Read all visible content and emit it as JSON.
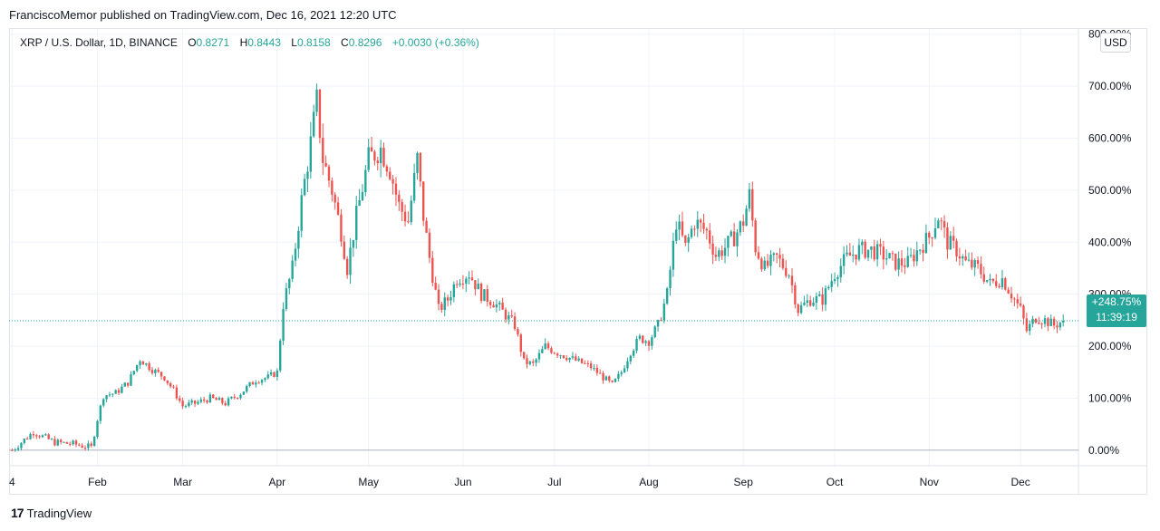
{
  "header": {
    "published": "FranciscoMemor published on TradingView.com, Dec 16, 2021 12:20 UTC"
  },
  "legend": {
    "symbol": "XRP / U.S. Dollar, 1D, BINANCE",
    "o_label": "O",
    "o_value": "0.8271",
    "h_label": "H",
    "h_value": "0.8443",
    "l_label": "L",
    "l_value": "0.8158",
    "c_label": "C",
    "c_value": "0.8296",
    "change": "+0.0030 (+0.36%)"
  },
  "currency_button": "USD",
  "price_tag": {
    "value": "+248.75%",
    "countdown": "11:39:19"
  },
  "logo": {
    "mark": "17",
    "text": "TradingView"
  },
  "colors": {
    "up": "#26a69a",
    "down": "#ef5350",
    "grid": "#f0f3fa",
    "axis_text": "#131722"
  },
  "chart_data": {
    "type": "candlestick",
    "y_unit": "percent change",
    "ylim": [
      -30,
      810
    ],
    "y_ticks": [
      0,
      100,
      200,
      300,
      400,
      500,
      600,
      700,
      800
    ],
    "y_tick_labels": [
      "0.00%",
      "100.00%",
      "200.00%",
      "300.00%",
      "400.00%",
      "500.00%",
      "600.00%",
      "700.00%",
      "800.00%"
    ],
    "x_range_days": [
      -1,
      350
    ],
    "x_ticks": [
      {
        "label": "4",
        "day": 0
      },
      {
        "label": "Feb",
        "day": 28
      },
      {
        "label": "Mar",
        "day": 56
      },
      {
        "label": "Apr",
        "day": 87
      },
      {
        "label": "May",
        "day": 117
      },
      {
        "label": "Jun",
        "day": 148
      },
      {
        "label": "Jul",
        "day": 178
      },
      {
        "label": "Aug",
        "day": 209
      },
      {
        "label": "Sep",
        "day": 240
      },
      {
        "label": "Oct",
        "day": 270
      },
      {
        "label": "Nov",
        "day": 301
      },
      {
        "label": "Dec",
        "day": 331
      }
    ],
    "last_value": 248.75,
    "grid": true,
    "series": [
      {
        "day": 0,
        "close": 0
      },
      {
        "day": 7,
        "close": 35
      },
      {
        "day": 14,
        "close": 15
      },
      {
        "day": 20,
        "close": 12
      },
      {
        "day": 26,
        "close": 5
      },
      {
        "day": 28,
        "close": 60
      },
      {
        "day": 30,
        "close": 105
      },
      {
        "day": 34,
        "close": 110
      },
      {
        "day": 38,
        "close": 130
      },
      {
        "day": 42,
        "close": 175
      },
      {
        "day": 46,
        "close": 155
      },
      {
        "day": 50,
        "close": 140
      },
      {
        "day": 53,
        "close": 115
      },
      {
        "day": 56,
        "close": 85
      },
      {
        "day": 60,
        "close": 90
      },
      {
        "day": 65,
        "close": 100
      },
      {
        "day": 70,
        "close": 90
      },
      {
        "day": 75,
        "close": 110
      },
      {
        "day": 80,
        "close": 135
      },
      {
        "day": 84,
        "close": 140
      },
      {
        "day": 87,
        "close": 150
      },
      {
        "day": 89,
        "close": 280
      },
      {
        "day": 92,
        "close": 350
      },
      {
        "day": 95,
        "close": 480
      },
      {
        "day": 98,
        "close": 590
      },
      {
        "day": 100,
        "close": 670
      },
      {
        "day": 102,
        "close": 560
      },
      {
        "day": 105,
        "close": 500
      },
      {
        "day": 108,
        "close": 420
      },
      {
        "day": 110,
        "close": 350
      },
      {
        "day": 113,
        "close": 450
      },
      {
        "day": 117,
        "close": 560
      },
      {
        "day": 121,
        "close": 580
      },
      {
        "day": 124,
        "close": 540
      },
      {
        "day": 127,
        "close": 470
      },
      {
        "day": 130,
        "close": 440
      },
      {
        "day": 133,
        "close": 560
      },
      {
        "day": 135,
        "close": 450
      },
      {
        "day": 137,
        "close": 370
      },
      {
        "day": 140,
        "close": 270
      },
      {
        "day": 143,
        "close": 290
      },
      {
        "day": 146,
        "close": 330
      },
      {
        "day": 150,
        "close": 340
      },
      {
        "day": 154,
        "close": 300
      },
      {
        "day": 158,
        "close": 285
      },
      {
        "day": 162,
        "close": 260
      },
      {
        "day": 165,
        "close": 240
      },
      {
        "day": 168,
        "close": 170
      },
      {
        "day": 171,
        "close": 165
      },
      {
        "day": 175,
        "close": 200
      },
      {
        "day": 178,
        "close": 190
      },
      {
        "day": 182,
        "close": 180
      },
      {
        "day": 186,
        "close": 170
      },
      {
        "day": 190,
        "close": 160
      },
      {
        "day": 194,
        "close": 140
      },
      {
        "day": 197,
        "close": 125
      },
      {
        "day": 200,
        "close": 150
      },
      {
        "day": 203,
        "close": 190
      },
      {
        "day": 206,
        "close": 215
      },
      {
        "day": 209,
        "close": 210
      },
      {
        "day": 212,
        "close": 240
      },
      {
        "day": 215,
        "close": 300
      },
      {
        "day": 218,
        "close": 440
      },
      {
        "day": 221,
        "close": 390
      },
      {
        "day": 224,
        "close": 440
      },
      {
        "day": 228,
        "close": 420
      },
      {
        "day": 231,
        "close": 375
      },
      {
        "day": 234,
        "close": 390
      },
      {
        "day": 237,
        "close": 410
      },
      {
        "day": 240,
        "close": 440
      },
      {
        "day": 242,
        "close": 490
      },
      {
        "day": 244,
        "close": 390
      },
      {
        "day": 247,
        "close": 350
      },
      {
        "day": 251,
        "close": 370
      },
      {
        "day": 255,
        "close": 340
      },
      {
        "day": 258,
        "close": 270
      },
      {
        "day": 262,
        "close": 290
      },
      {
        "day": 266,
        "close": 290
      },
      {
        "day": 270,
        "close": 340
      },
      {
        "day": 274,
        "close": 370
      },
      {
        "day": 278,
        "close": 385
      },
      {
        "day": 282,
        "close": 385
      },
      {
        "day": 286,
        "close": 375
      },
      {
        "day": 290,
        "close": 360
      },
      {
        "day": 294,
        "close": 360
      },
      {
        "day": 298,
        "close": 390
      },
      {
        "day": 301,
        "close": 410
      },
      {
        "day": 304,
        "close": 450
      },
      {
        "day": 307,
        "close": 400
      },
      {
        "day": 310,
        "close": 385
      },
      {
        "day": 313,
        "close": 360
      },
      {
        "day": 317,
        "close": 350
      },
      {
        "day": 321,
        "close": 320
      },
      {
        "day": 325,
        "close": 330
      },
      {
        "day": 328,
        "close": 300
      },
      {
        "day": 331,
        "close": 270
      },
      {
        "day": 333,
        "close": 230
      },
      {
        "day": 336,
        "close": 255
      },
      {
        "day": 339,
        "close": 250
      },
      {
        "day": 342,
        "close": 240
      },
      {
        "day": 345,
        "close": 248.75
      }
    ]
  }
}
